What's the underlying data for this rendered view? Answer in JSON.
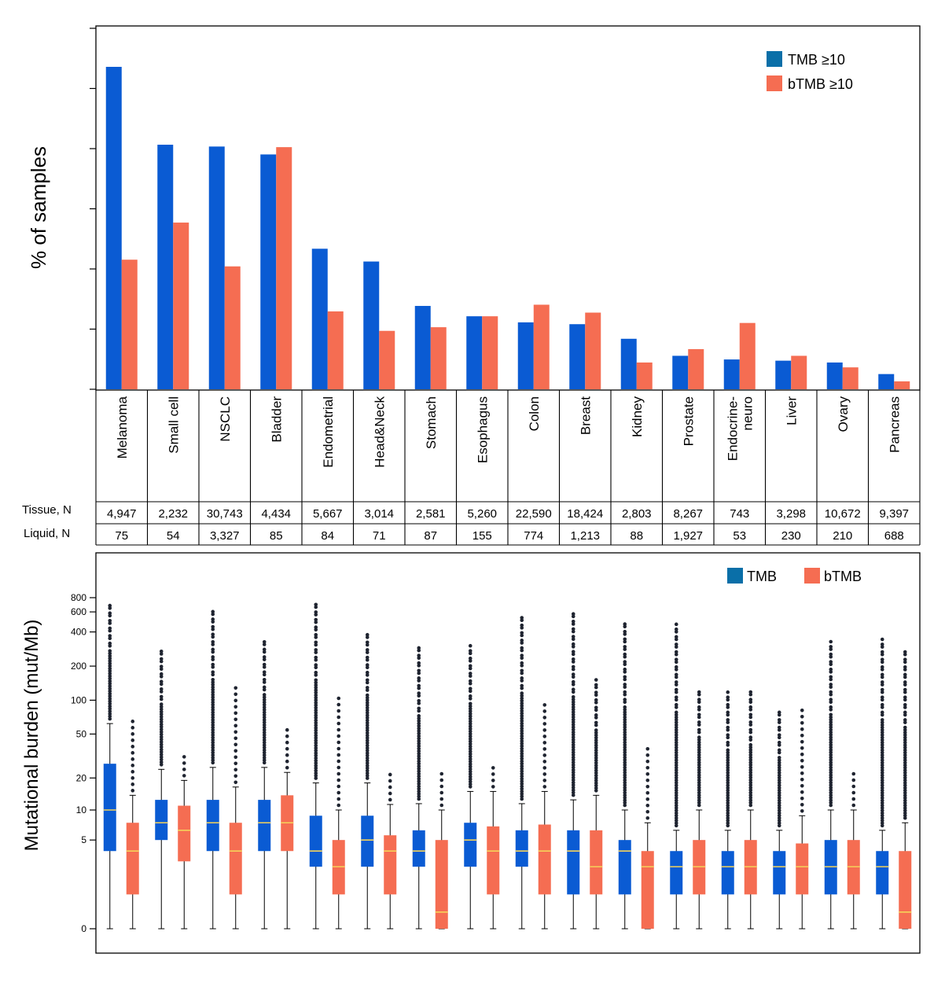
{
  "colors": {
    "tmb": "#0a5bd3",
    "btmb": "#f56d52",
    "median_line": "#f5d35a",
    "outlier": "#1f2430",
    "frame": "#000000"
  },
  "categories": [
    "Melanoma",
    "Small cell",
    "NSCLC",
    "Bladder",
    "Endometrial",
    "Head&Neck",
    "Stomach",
    "Esophagus",
    "Colon",
    "Breast",
    "Kidney",
    "Prostate",
    "Endocrine-neuro",
    "Liver",
    "Ovary",
    "Pancreas"
  ],
  "category_lines": [
    [
      "Melanoma"
    ],
    [
      "Small cell"
    ],
    [
      "NSCLC"
    ],
    [
      "Bladder"
    ],
    [
      "Endometrial"
    ],
    [
      "Head&Neck"
    ],
    [
      "Stomach"
    ],
    [
      "Esophagus"
    ],
    [
      "Colon"
    ],
    [
      "Breast"
    ],
    [
      "Kidney"
    ],
    [
      "Prostate"
    ],
    [
      "Endocrine-",
      "neuro"
    ],
    [
      "Liver"
    ],
    [
      "Ovary"
    ],
    [
      "Pancreas"
    ]
  ],
  "table": {
    "tissue_label": "Tissue, N",
    "liquid_label": "Liquid, N",
    "tissue_n": [
      "4,947",
      "2,232",
      "30,743",
      "4,434",
      "5,667",
      "3,014",
      "2,581",
      "5,260",
      "22,590",
      "18,424",
      "2,803",
      "8,267",
      "743",
      "3,298",
      "10,672",
      "9,397"
    ],
    "liquid_n": [
      "75",
      "54",
      "3,327",
      "85",
      "84",
      "71",
      "87",
      "155",
      "774",
      "1,213",
      "88",
      "1,927",
      "53",
      "230",
      "210",
      "688"
    ]
  },
  "chart_data": [
    {
      "type": "bar",
      "ylabel": "% of samples",
      "ylim": [
        0,
        53
      ],
      "legend_position": "top-right",
      "series": [
        {
          "name": "TMB ≥10",
          "values": [
            53.0,
            40.2,
            39.9,
            38.6,
            23.1,
            21.0,
            13.7,
            12.0,
            11.0,
            10.7,
            8.3,
            5.5,
            4.9,
            4.7,
            4.4,
            2.5
          ]
        },
        {
          "name": "bTMB ≥10",
          "values": [
            21.3,
            27.4,
            20.2,
            39.8,
            12.8,
            9.6,
            10.2,
            12.0,
            13.9,
            12.6,
            4.4,
            6.6,
            10.9,
            5.5,
            3.6,
            1.3
          ]
        }
      ]
    },
    {
      "type": "box",
      "ylabel": "Mutational burden (mut/Mb)",
      "y_scale": "log1p",
      "y_ticks": [
        0,
        5,
        10,
        20,
        50,
        100,
        200,
        400,
        600,
        800
      ],
      "legend_position": "top-right",
      "legend": [
        "TMB",
        "bTMB"
      ],
      "series": [
        {
          "name": "TMB",
          "boxes": [
            {
              "whisker_low": 0,
              "q1": 3.8,
              "median": 10,
              "q3": 27,
              "whisker_high": 62,
              "outlier_max": 720
            },
            {
              "whisker_low": 0,
              "q1": 5,
              "median": 7.5,
              "q3": 12.5,
              "whisker_high": 24,
              "outlier_max": 270
            },
            {
              "whisker_low": 0,
              "q1": 3.8,
              "median": 7.5,
              "q3": 12.5,
              "whisker_high": 25,
              "outlier_max": 650
            },
            {
              "whisker_low": 0,
              "q1": 3.8,
              "median": 7.5,
              "q3": 12.5,
              "whisker_high": 25,
              "outlier_max": 340
            },
            {
              "whisker_low": 0,
              "q1": 2.5,
              "median": 3.8,
              "q3": 8.8,
              "whisker_high": 18,
              "outlier_max": 760
            },
            {
              "whisker_low": 0,
              "q1": 2.5,
              "median": 5,
              "q3": 8.8,
              "whisker_high": 18,
              "outlier_max": 380
            },
            {
              "whisker_low": 0,
              "q1": 2.5,
              "median": 3.8,
              "q3": 6.3,
              "whisker_high": 11.5,
              "outlier_max": 300
            },
            {
              "whisker_low": 0,
              "q1": 2.5,
              "median": 5,
              "q3": 7.5,
              "whisker_high": 15,
              "outlier_max": 310
            },
            {
              "whisker_low": 0,
              "q1": 2.5,
              "median": 3.8,
              "q3": 6.3,
              "whisker_high": 11.5,
              "outlier_max": 560
            },
            {
              "whisker_low": 0,
              "q1": 1,
              "median": 3.8,
              "q3": 6.3,
              "whisker_high": 12.5,
              "outlier_max": 590
            },
            {
              "whisker_low": 0,
              "q1": 1,
              "median": 3.8,
              "q3": 5,
              "whisker_high": 10,
              "outlier_max": 470
            },
            {
              "whisker_low": 0,
              "q1": 1,
              "median": 2.5,
              "q3": 3.8,
              "whisker_high": 6.3,
              "outlier_max": 470
            },
            {
              "whisker_low": 0,
              "q1": 1,
              "median": 2.5,
              "q3": 3.8,
              "whisker_high": 6.3,
              "outlier_max": 120
            },
            {
              "whisker_low": 0,
              "q1": 1,
              "median": 2.5,
              "q3": 3.8,
              "whisker_high": 6.3,
              "outlier_max": 80
            },
            {
              "whisker_low": 0,
              "q1": 1,
              "median": 2.5,
              "q3": 5,
              "whisker_high": 10,
              "outlier_max": 330
            },
            {
              "whisker_low": 0,
              "q1": 1,
              "median": 2.5,
              "q3": 3.8,
              "whisker_high": 6.3,
              "outlier_max": 360
            }
          ]
        },
        {
          "name": "bTMB",
          "boxes": [
            {
              "whisker_low": 0,
              "q1": 1,
              "median": 3.8,
              "q3": 7.5,
              "whisker_high": 13.8,
              "outlier_max": 73
            },
            {
              "whisker_low": 0,
              "q1": 2.9,
              "median": 6.3,
              "q3": 11,
              "whisker_high": 19,
              "outlier_max": 33
            },
            {
              "whisker_low": 0,
              "q1": 1,
              "median": 3.8,
              "q3": 7.5,
              "whisker_high": 16.5,
              "outlier_max": 140
            },
            {
              "whisker_low": 0,
              "q1": 3.8,
              "median": 7.5,
              "q3": 13.8,
              "whisker_high": 22.5,
              "outlier_max": 58
            },
            {
              "whisker_low": 0,
              "q1": 1,
              "median": 2.5,
              "q3": 5,
              "whisker_high": 10,
              "outlier_max": 110
            },
            {
              "whisker_low": 0,
              "q1": 1,
              "median": 3.8,
              "q3": 5.6,
              "whisker_high": 11.3,
              "outlier_max": 23
            },
            {
              "whisker_low": 0,
              "q1": 0,
              "median": 0.4,
              "q3": 5,
              "whisker_high": 10,
              "outlier_max": 23
            },
            {
              "whisker_low": 0,
              "q1": 1,
              "median": 3.8,
              "q3": 6.9,
              "whisker_high": 15,
              "outlier_max": 28
            },
            {
              "whisker_low": 0,
              "q1": 1,
              "median": 3.8,
              "q3": 7.2,
              "whisker_high": 15,
              "outlier_max": 100
            },
            {
              "whisker_low": 0,
              "q1": 1,
              "median": 2.5,
              "q3": 6.3,
              "whisker_high": 13.8,
              "outlier_max": 155
            },
            {
              "whisker_low": 0,
              "q1": 0,
              "median": 2.5,
              "q3": 3.8,
              "whisker_high": 7.5,
              "outlier_max": 40
            },
            {
              "whisker_low": 0,
              "q1": 1,
              "median": 2.5,
              "q3": 5,
              "whisker_high": 10,
              "outlier_max": 125
            },
            {
              "whisker_low": 0,
              "q1": 1,
              "median": 2.5,
              "q3": 5,
              "whisker_high": 10,
              "outlier_max": 120
            },
            {
              "whisker_low": 0,
              "q1": 1,
              "median": 2.5,
              "q3": 4.6,
              "whisker_high": 8.8,
              "outlier_max": 88
            },
            {
              "whisker_low": 0,
              "q1": 1,
              "median": 2.5,
              "q3": 5,
              "whisker_high": 10,
              "outlier_max": 23
            },
            {
              "whisker_low": 0,
              "q1": 0,
              "median": 0.4,
              "q3": 3.8,
              "whisker_high": 7.5,
              "outlier_max": 270
            }
          ]
        }
      ]
    }
  ]
}
